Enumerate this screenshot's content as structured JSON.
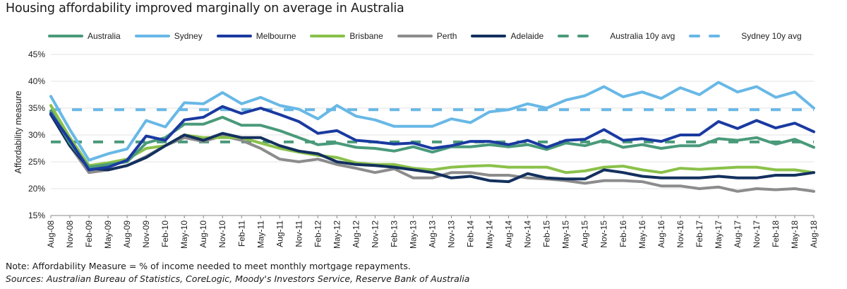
{
  "chart_data": {
    "type": "line",
    "title": "Housing affordability improved marginally on average in Australia",
    "xlabel": "",
    "ylabel": "Affordability measure",
    "ylim": [
      15,
      45
    ],
    "yticks": [
      15,
      20,
      25,
      30,
      35,
      40,
      45
    ],
    "ytick_labels": [
      "15%",
      "20%",
      "25%",
      "30%",
      "35%",
      "40%",
      "45%"
    ],
    "grid": true,
    "legend_position": "top",
    "x": [
      "Aug-08",
      "Nov-08",
      "Feb-09",
      "May-09",
      "Aug-09",
      "Nov-09",
      "Feb-10",
      "May-10",
      "Aug-10",
      "Nov-10",
      "Feb-11",
      "May-11",
      "Aug-11",
      "Nov-11",
      "Feb-12",
      "May-12",
      "Aug-12",
      "Nov-12",
      "Feb-13",
      "May-13",
      "Aug-13",
      "Nov-13",
      "Feb-14",
      "May-14",
      "Aug-14",
      "Nov-14",
      "Feb-15",
      "May-15",
      "Aug-15",
      "Nov-15",
      "Feb-16",
      "May-16",
      "Aug-16",
      "Nov-16",
      "Feb-17",
      "May-17",
      "Aug-17",
      "Nov-17",
      "Feb-18",
      "May-18",
      "Aug-18"
    ],
    "series": [
      {
        "name": "Australia",
        "color": "#4a9a7a",
        "style": "solid",
        "values": [
          34.5,
          28.5,
          24.0,
          24.5,
          25.0,
          28.5,
          29.5,
          32.0,
          32.0,
          33.3,
          31.8,
          31.8,
          30.8,
          29.5,
          28.2,
          28.5,
          27.7,
          27.5,
          27.0,
          27.8,
          26.8,
          27.8,
          27.8,
          28.2,
          27.8,
          28.2,
          27.3,
          28.5,
          28.0,
          29.0,
          27.7,
          28.2,
          27.5,
          28.0,
          28.0,
          29.3,
          29.0,
          29.5,
          28.3,
          29.2,
          27.7
        ]
      },
      {
        "name": "Sydney",
        "color": "#68b8e6",
        "style": "solid",
        "values": [
          37.2,
          31.0,
          25.3,
          26.5,
          27.4,
          32.7,
          31.5,
          36.0,
          35.8,
          37.9,
          35.8,
          37.0,
          35.5,
          34.8,
          33.0,
          35.5,
          33.5,
          32.8,
          31.6,
          31.6,
          31.6,
          33.0,
          32.3,
          34.3,
          34.7,
          35.8,
          35.0,
          36.5,
          37.3,
          39.0,
          37.1,
          38.0,
          36.8,
          38.8,
          37.5,
          39.8,
          38.0,
          39.0,
          37.0,
          38.0,
          35.0
        ]
      },
      {
        "name": "Melbourne",
        "color": "#1a3aa0",
        "style": "solid",
        "values": [
          34.0,
          29.0,
          23.5,
          24.0,
          25.3,
          29.8,
          29.0,
          32.8,
          33.3,
          35.3,
          34.0,
          35.0,
          33.8,
          32.5,
          30.3,
          30.8,
          29.0,
          28.7,
          28.3,
          28.5,
          27.5,
          28.0,
          28.8,
          28.8,
          28.2,
          29.0,
          27.7,
          29.0,
          29.2,
          31.0,
          29.0,
          29.3,
          28.8,
          30.0,
          30.0,
          32.5,
          31.2,
          32.7,
          31.3,
          32.2,
          30.6
        ]
      },
      {
        "name": "Brisbane",
        "color": "#8ac14a",
        "style": "solid",
        "values": [
          35.5,
          29.5,
          24.3,
          24.8,
          25.5,
          27.5,
          28.0,
          30.0,
          29.5,
          29.5,
          29.5,
          28.5,
          27.5,
          26.8,
          26.2,
          25.8,
          24.8,
          24.5,
          24.5,
          23.8,
          23.5,
          24.0,
          24.2,
          24.3,
          24.0,
          24.0,
          24.0,
          23.0,
          23.3,
          24.0,
          24.2,
          23.5,
          23.0,
          23.8,
          23.6,
          23.8,
          24.0,
          24.0,
          23.5,
          23.5,
          23.0
        ]
      },
      {
        "name": "Perth",
        "color": "#8c8c8c",
        "style": "solid",
        "values": [
          34.2,
          28.0,
          23.0,
          23.5,
          24.3,
          26.0,
          28.0,
          29.5,
          28.8,
          29.8,
          29.0,
          27.5,
          25.5,
          25.0,
          25.5,
          24.5,
          23.8,
          23.0,
          23.7,
          22.0,
          22.0,
          23.0,
          23.0,
          22.5,
          22.5,
          22.0,
          21.8,
          21.5,
          21.0,
          21.5,
          21.5,
          21.3,
          20.5,
          20.5,
          20.0,
          20.3,
          19.5,
          20.0,
          19.8,
          20.0,
          19.5
        ]
      },
      {
        "name": "Adelaide",
        "color": "#13305e",
        "style": "solid",
        "values": [
          33.8,
          28.0,
          23.8,
          23.5,
          24.3,
          25.8,
          28.0,
          30.0,
          29.0,
          30.3,
          29.5,
          29.5,
          28.0,
          27.0,
          26.5,
          25.0,
          24.5,
          24.3,
          24.0,
          23.5,
          23.0,
          22.0,
          22.3,
          21.5,
          21.3,
          22.8,
          22.0,
          21.8,
          21.8,
          23.5,
          23.0,
          22.3,
          22.0,
          22.0,
          22.0,
          22.3,
          22.0,
          22.0,
          22.5,
          22.5,
          23.0
        ]
      },
      {
        "name": "Australia 10y avg",
        "color": "#4a9a7a",
        "style": "dashed",
        "values": [
          28.7,
          28.7,
          28.7,
          28.7,
          28.7,
          28.7,
          28.7,
          28.7,
          28.7,
          28.7,
          28.7,
          28.7,
          28.7,
          28.7,
          28.7,
          28.7,
          28.7,
          28.7,
          28.7,
          28.7,
          28.7,
          28.7,
          28.7,
          28.7,
          28.7,
          28.7,
          28.7,
          28.7,
          28.7,
          28.7,
          28.7,
          28.7,
          28.7,
          28.7,
          28.7,
          28.7,
          28.7,
          28.7,
          28.7,
          28.7,
          28.7
        ]
      },
      {
        "name": "Sydney 10y avg",
        "color": "#68b8e6",
        "style": "dashed",
        "values": [
          34.7,
          34.7,
          34.7,
          34.7,
          34.7,
          34.7,
          34.7,
          34.7,
          34.7,
          34.7,
          34.7,
          34.7,
          34.7,
          34.7,
          34.7,
          34.7,
          34.7,
          34.7,
          34.7,
          34.7,
          34.7,
          34.7,
          34.7,
          34.7,
          34.7,
          34.7,
          34.7,
          34.7,
          34.7,
          34.7,
          34.7,
          34.7,
          34.7,
          34.7,
          34.7,
          34.7,
          34.7,
          34.7,
          34.7,
          34.7,
          34.7
        ]
      }
    ]
  },
  "legend": {
    "items": [
      {
        "label": "Australia",
        "color": "#4a9a7a",
        "style": "solid"
      },
      {
        "label": "Sydney",
        "color": "#68b8e6",
        "style": "solid"
      },
      {
        "label": "Melbourne",
        "color": "#1a3aa0",
        "style": "solid"
      },
      {
        "label": "Brisbane",
        "color": "#8ac14a",
        "style": "solid"
      },
      {
        "label": "Perth",
        "color": "#8c8c8c",
        "style": "solid"
      },
      {
        "label": "Adelaide",
        "color": "#13305e",
        "style": "solid"
      },
      {
        "label": "Australia 10y avg",
        "color": "#4a9a7a",
        "style": "dashed"
      },
      {
        "label": "Sydney 10y avg",
        "color": "#68b8e6",
        "style": "dashed"
      }
    ]
  },
  "footer": {
    "note": "Note: Affordability Measure = % of income needed to meet monthly mortgage repayments.",
    "sources": "Sources: Australian Bureau of Statistics, CoreLogic, Moody's Investors Service, Reserve Bank of Australia"
  }
}
